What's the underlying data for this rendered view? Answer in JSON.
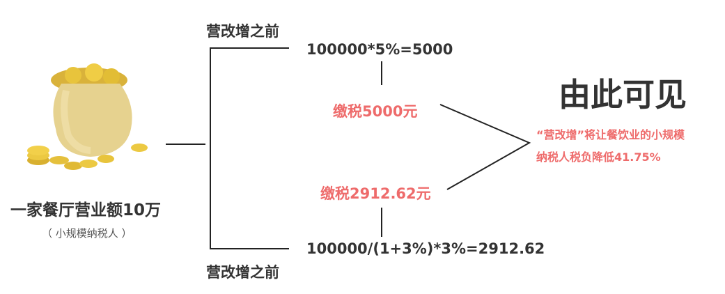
{
  "left": {
    "title": "一家餐厅营业额10万",
    "subtitle": "（ 小规模纳税人 ）",
    "image": "money-bag-with-gold-coins"
  },
  "top_branch": {
    "label": "营改增之前",
    "formula": "100000*5%=5000",
    "tax": "缴税5000元"
  },
  "bottom_branch": {
    "label": "营改增之前",
    "formula": "100000/(1+3%)*3%=2912.62",
    "tax": "缴税2912.62元"
  },
  "conclusion": {
    "title": "由此可见",
    "line1": "“营改增”将让餐饮业的小规模",
    "line2": "纳税人税负降低41.75%"
  },
  "colors": {
    "text": "#333333",
    "accent": "#ee6b6b",
    "line": "#222222"
  }
}
